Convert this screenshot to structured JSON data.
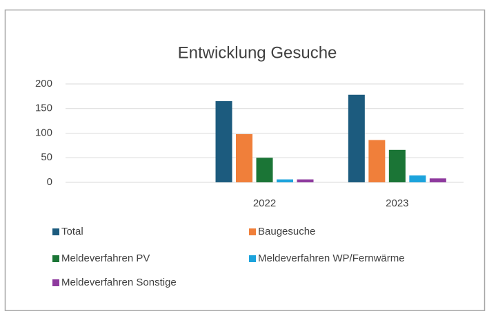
{
  "chart_data": {
    "type": "bar",
    "title": "Entwicklung Gesuche",
    "categories": [
      null,
      "2022",
      "2023"
    ],
    "series": [
      {
        "name": "Total",
        "color": "#1c5b7e",
        "values": [
          null,
          165,
          178
        ]
      },
      {
        "name": "Baugesuche",
        "color": "#f07f3a",
        "values": [
          null,
          98,
          86
        ]
      },
      {
        "name": "Meldeverfahren PV",
        "color": "#1b7536",
        "values": [
          null,
          50,
          66
        ]
      },
      {
        "name": "Meldeverfahren WP/Fernwärme",
        "color": "#1ca3dc",
        "values": [
          null,
          6,
          14
        ]
      },
      {
        "name": "Meldeverfahren Sonstige",
        "color": "#8e3a9e",
        "values": [
          null,
          6,
          8
        ]
      }
    ],
    "ylim": [
      0,
      200
    ],
    "yticks": [
      0,
      50,
      100,
      150,
      200
    ],
    "grid": true
  }
}
